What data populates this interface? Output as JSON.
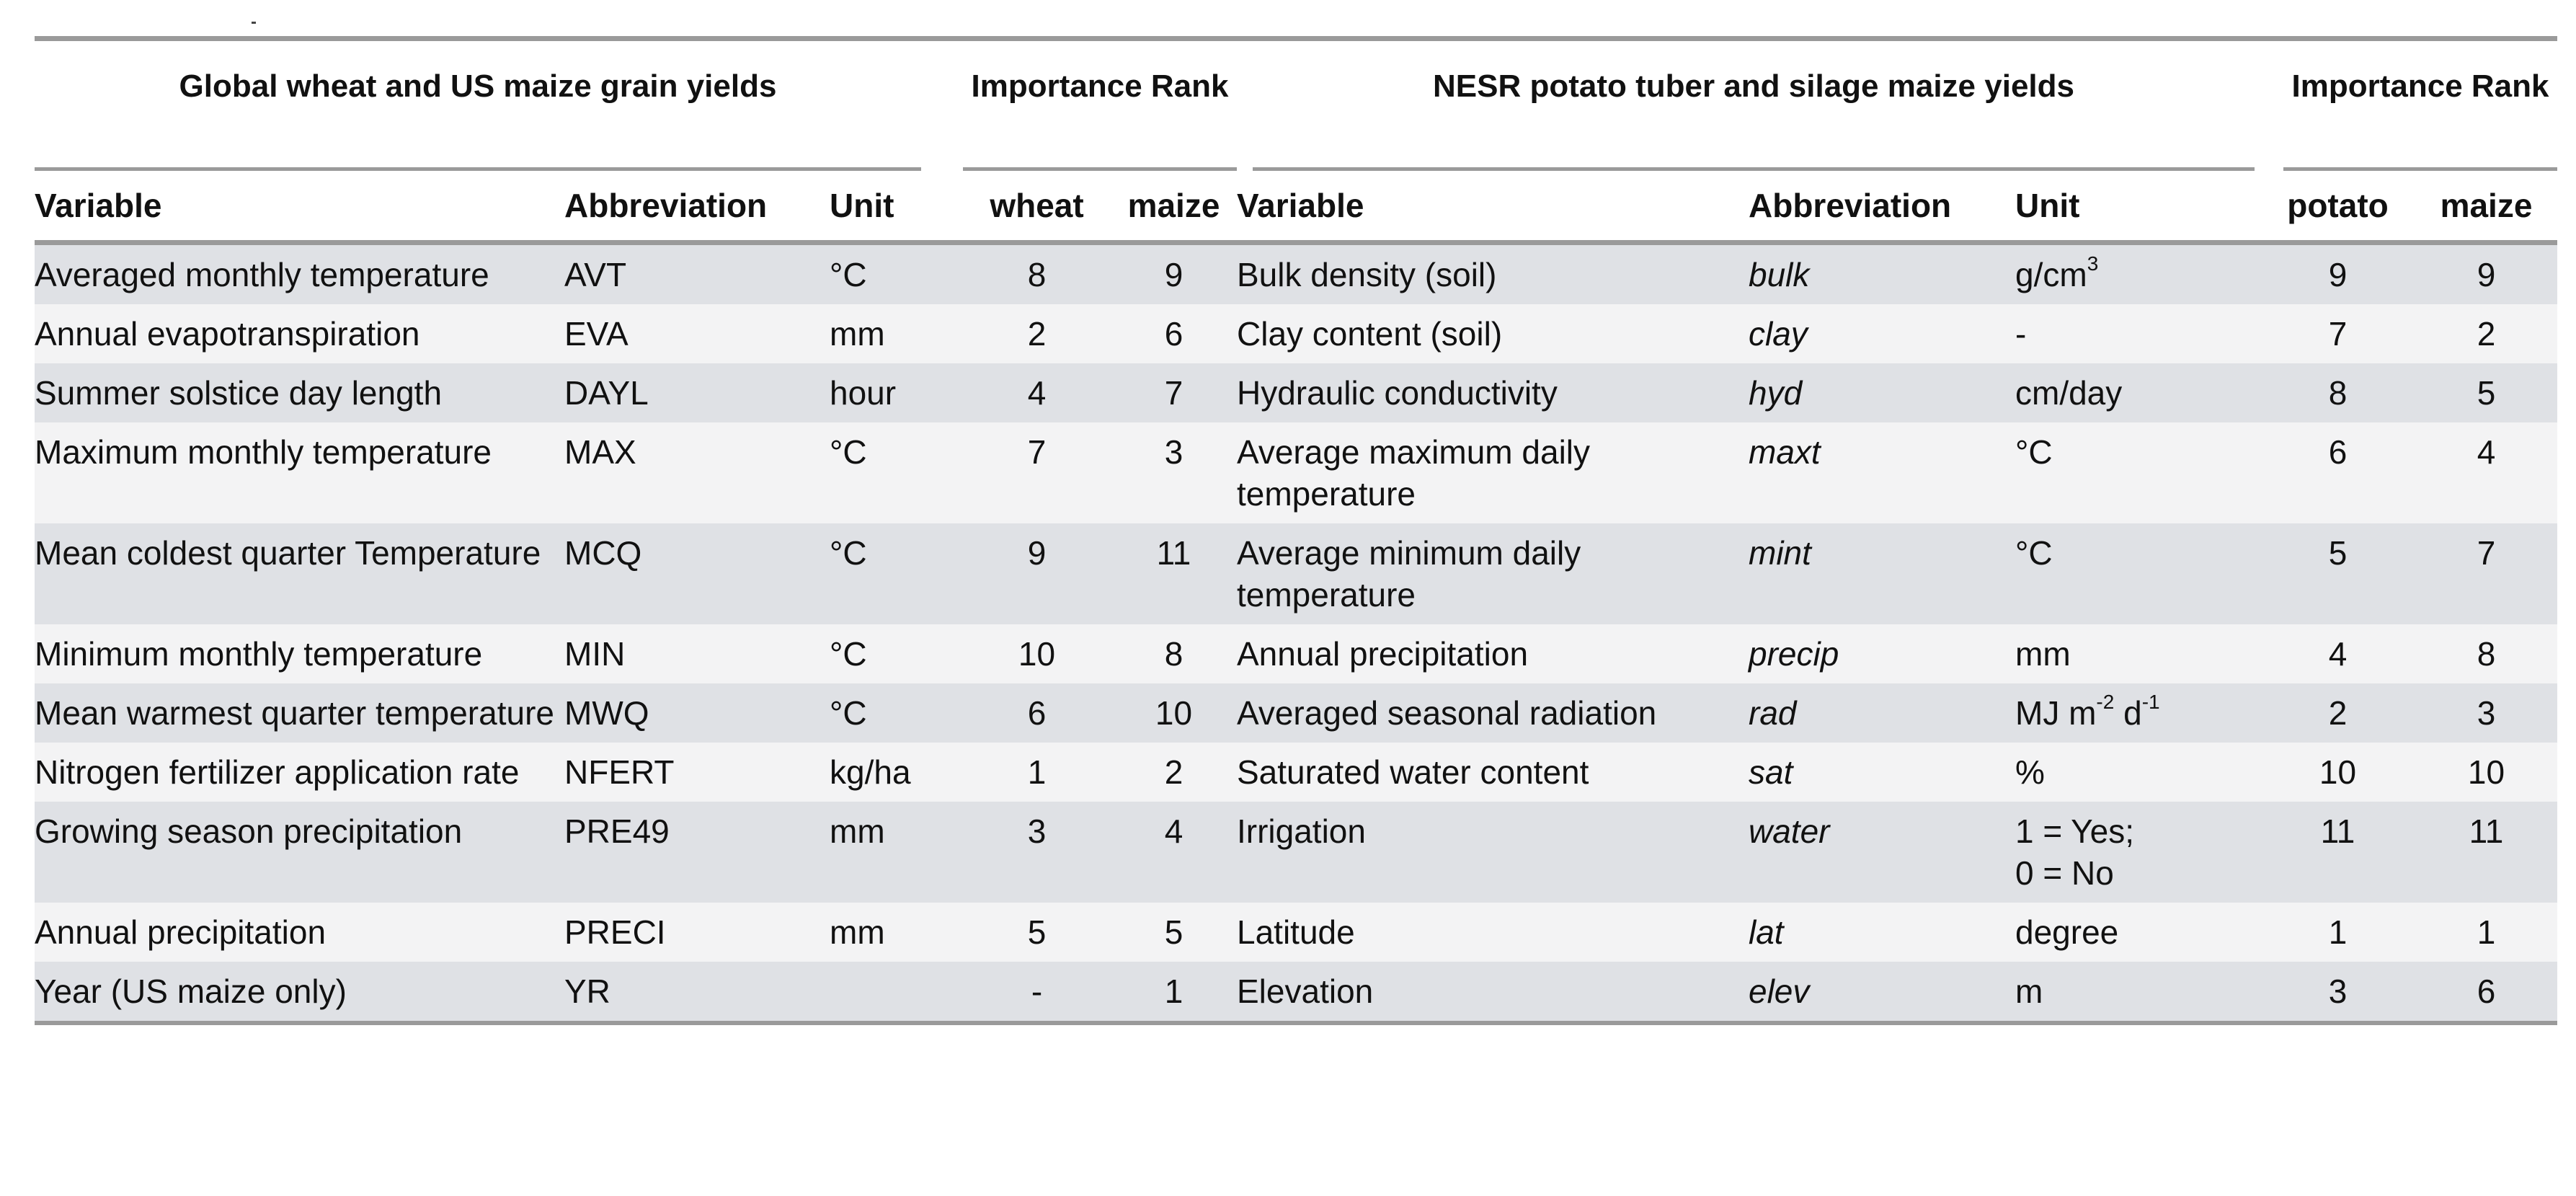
{
  "group_headers": {
    "left_title": "Global wheat and US maize grain yields",
    "left_rank": "Importance Rank",
    "right_title": "NESR potato tuber and silage maize yields",
    "right_rank": "Importance Rank"
  },
  "columns": {
    "variable": "Variable",
    "abbreviation": "Abbreviation",
    "unit": "Unit",
    "wheat": "wheat",
    "maize": "maize",
    "variable2": "Variable",
    "abbreviation2": "Abbreviation",
    "unit2": "Unit",
    "potato": "potato",
    "maize2": "maize"
  },
  "rows": [
    {
      "var": "Averaged monthly temperature",
      "abbr": "AVT",
      "unit": "°C",
      "wheat": "8",
      "maize": "9",
      "var2": "Bulk density (soil)",
      "abbr2": "bulk",
      "unit2": "g/cm",
      "unit2_sup": "3",
      "potato": "9",
      "maize2": "9"
    },
    {
      "var": "Annual evapotranspiration",
      "abbr": "EVA",
      "unit": "mm",
      "wheat": "2",
      "maize": "6",
      "var2": "Clay content (soil)",
      "abbr2": "clay",
      "unit2": "-",
      "potato": "7",
      "maize2": "2"
    },
    {
      "var": "Summer solstice day length",
      "abbr": "DAYL",
      "unit": "hour",
      "wheat": "4",
      "maize": "7",
      "var2": "Hydraulic conductivity",
      "abbr2": "hyd",
      "unit2": "cm/day",
      "potato": "8",
      "maize2": "5"
    },
    {
      "var": "Maximum monthly temperature",
      "abbr": "MAX",
      "unit": "°C",
      "wheat": "7",
      "maize": "3",
      "var2": "Average maximum daily temperature",
      "abbr2": "maxt",
      "unit2": "°C",
      "potato": "6",
      "maize2": "4"
    },
    {
      "var": "Mean coldest quarter Temperature",
      "abbr": "MCQ",
      "unit": "°C",
      "wheat": "9",
      "maize": "11",
      "var2": "Average minimum daily temperature",
      "abbr2": "mint",
      "unit2": "°C",
      "potato": "5",
      "maize2": "7"
    },
    {
      "var": "Minimum monthly temperature",
      "abbr": "MIN",
      "unit": "°C",
      "wheat": "10",
      "maize": "8",
      "var2": "Annual precipitation",
      "abbr2": "precip",
      "unit2": "mm",
      "potato": "4",
      "maize2": "8"
    },
    {
      "var": "Mean warmest quarter temperature",
      "abbr": "MWQ",
      "unit": "°C",
      "wheat": "6",
      "maize": "10",
      "var2": "Averaged seasonal radiation",
      "abbr2": "rad",
      "unit2_a": "MJ m",
      "unit2_sup_a": "-2",
      "unit2_b": " d",
      "unit2_sup_b": "-1",
      "potato": "2",
      "maize2": "3"
    },
    {
      "var": "Nitrogen fertilizer application rate",
      "abbr": "NFERT",
      "unit": "kg/ha",
      "wheat": "1",
      "maize": "2",
      "var2": "Saturated water content",
      "abbr2": "sat",
      "unit2": "%",
      "potato": "10",
      "maize2": "10"
    },
    {
      "var": "Growing season precipitation",
      "abbr": "PRE49",
      "unit": "mm",
      "wheat": "3",
      "maize": "4",
      "var2": "Irrigation",
      "abbr2": "water",
      "unit2": "1 = Yes;",
      "unit2_line2": "0 = No",
      "potato": "11",
      "maize2": "11"
    },
    {
      "var": "Annual precipitation",
      "abbr": "PRECI",
      "unit": "mm",
      "wheat": "5",
      "maize": "5",
      "var2": "Latitude",
      "abbr2": "lat",
      "unit2": "degree",
      "potato": "1",
      "maize2": "1"
    },
    {
      "var": "Year (US maize only)",
      "abbr": "YR",
      "unit": "",
      "wheat": "-",
      "maize": "1",
      "var2": "Elevation",
      "abbr2": "elev",
      "unit2": "m",
      "potato": "3",
      "maize2": "6"
    }
  ]
}
